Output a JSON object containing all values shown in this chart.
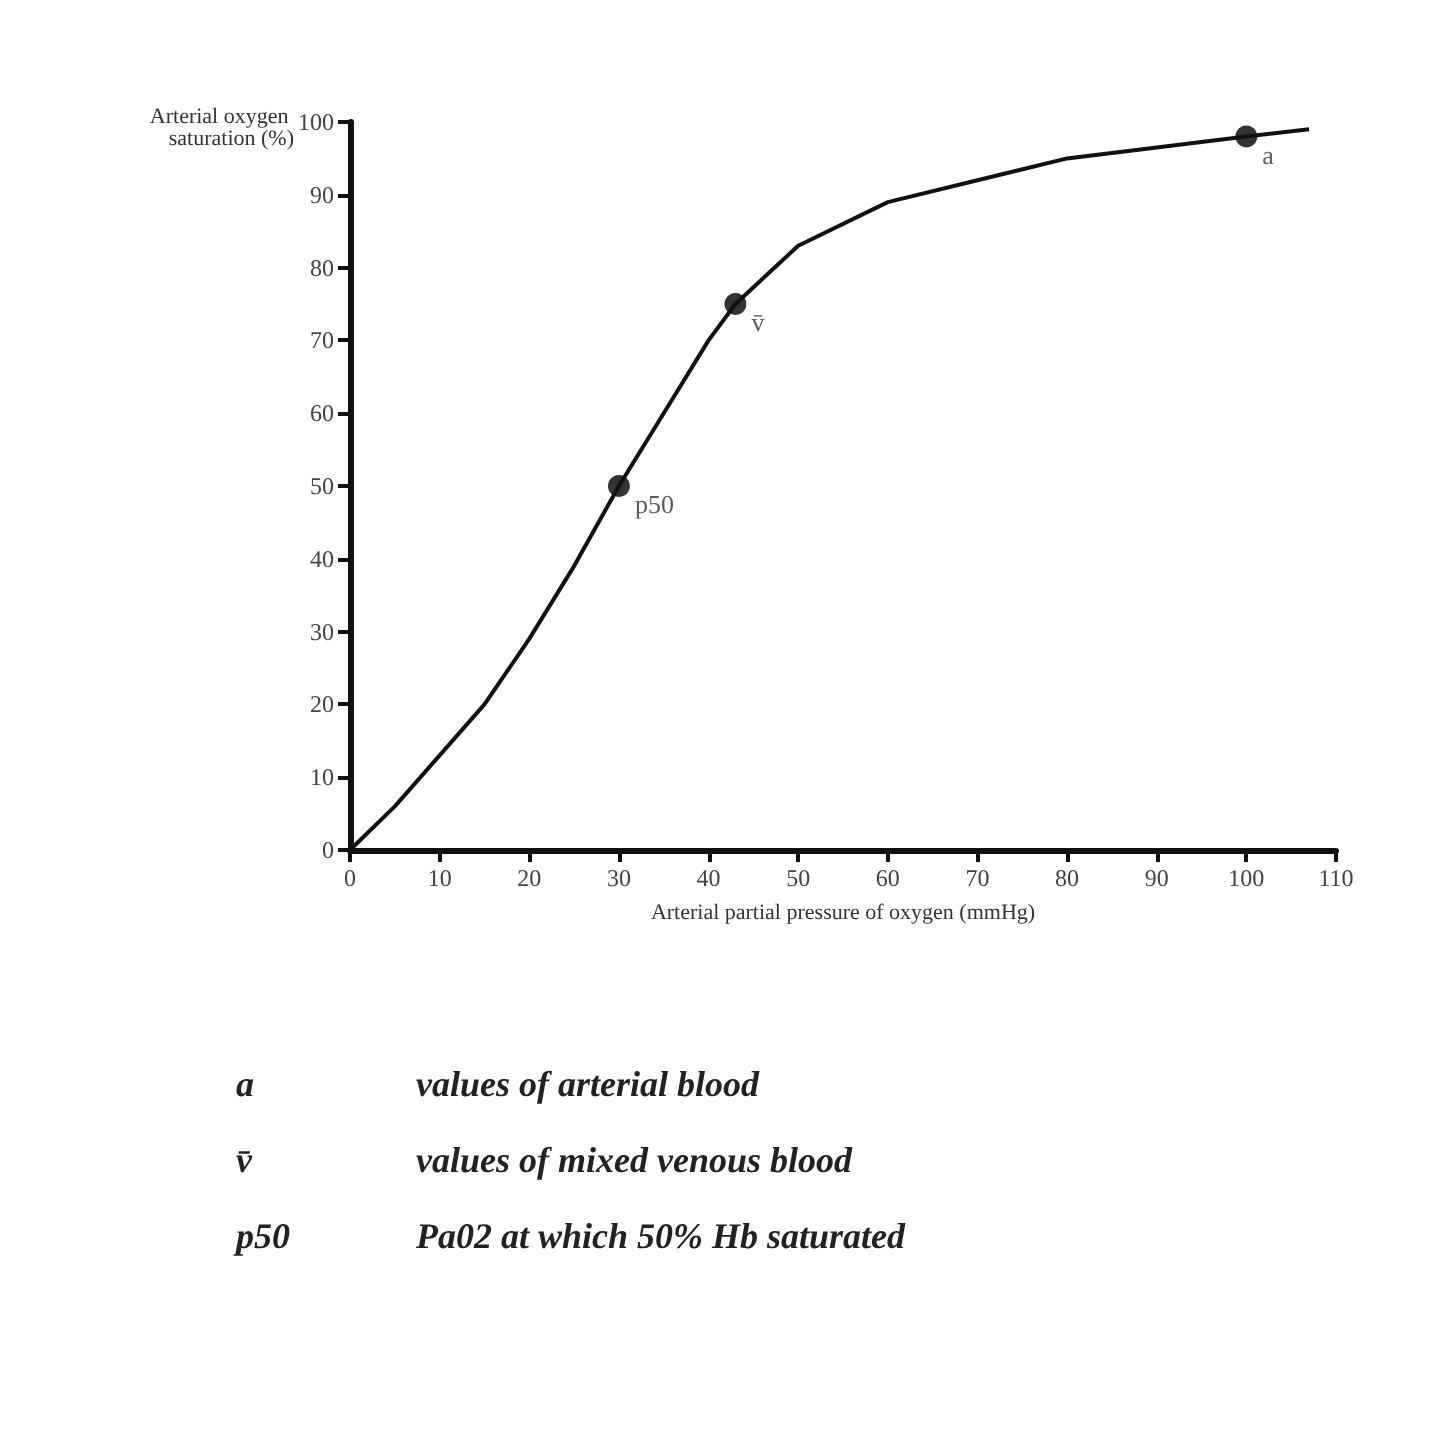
{
  "chart_data": {
    "type": "line",
    "xlabel": "Arterial partial pressure of oxygen (mmHg)",
    "ylabel": "Arterial oxygen saturation (%)",
    "series": [
      {
        "color": "#111111",
        "marker": "none",
        "x": [
          0,
          5,
          10,
          15,
          20,
          25,
          30,
          35,
          40,
          43,
          50,
          60,
          70,
          80,
          90,
          100,
          107
        ],
        "values": [
          0,
          6,
          13,
          20,
          29,
          39,
          50,
          60,
          70,
          75,
          83,
          89,
          92,
          95,
          96.5,
          98,
          99
        ]
      },
      {
        "type": "scatter",
        "color": "#000000",
        "marker": "circle",
        "x": [
          30,
          43,
          100
        ],
        "values": [
          50,
          75,
          98
        ]
      }
    ],
    "xlim": [
      0,
      110
    ],
    "ylim": [
      0,
      100
    ],
    "xticks": [
      0,
      10,
      20,
      30,
      40,
      50,
      60,
      70,
      80,
      90,
      100,
      110
    ],
    "yticks": [
      0,
      10,
      20,
      30,
      40,
      50,
      60,
      70,
      80,
      90,
      100
    ],
    "grid": false,
    "annotations": [
      {
        "text": "p50",
        "x": 30,
        "y": 50
      },
      {
        "text": "v̄",
        "x": 43,
        "y": 75
      },
      {
        "text": "a",
        "x": 100,
        "y": 98
      },
      "a",
      "values of arterial blood",
      "v̄",
      "values of mixed venous blood",
      "p50",
      "Pa02 at which 50% Hb saturated"
    ]
  }
}
